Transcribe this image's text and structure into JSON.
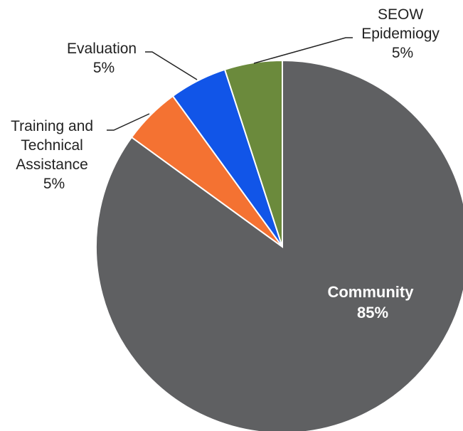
{
  "chart_data": {
    "type": "pie",
    "slices": [
      {
        "name": "Community",
        "value": 85,
        "percent_label": "85%",
        "color": "#5f6062"
      },
      {
        "name": "Training and Technical Assistance",
        "value": 5,
        "percent_label": "5%",
        "color": "#f47232"
      },
      {
        "name": "Evaluation",
        "value": 5,
        "percent_label": "5%",
        "color": "#1155e8"
      },
      {
        "name": "SEOW Epidemiogy",
        "value": 5,
        "percent_label": "5%",
        "color": "#6b8a3c"
      }
    ],
    "labels": {
      "community": [
        "Community",
        "85%"
      ],
      "training": [
        "Training and",
        "Technical",
        "Assistance",
        "5%"
      ],
      "evaluation": [
        "Evaluation",
        "5%"
      ],
      "seow": [
        "SEOW",
        "Epidemiogy",
        "5%"
      ]
    }
  }
}
